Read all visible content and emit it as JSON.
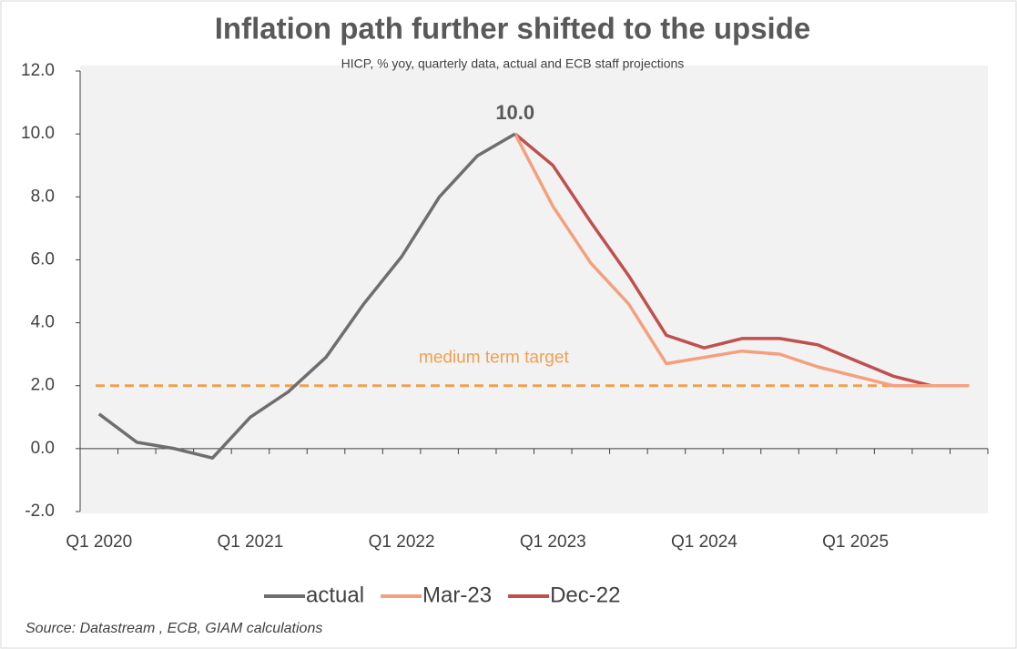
{
  "chart_data": {
    "type": "line",
    "title": "Inflation path further shifted to the upside",
    "subtitle": "HICP, % yoy, quarterly data, actual and ECB staff projections",
    "source": "Source: Datastream , ECB, GIAM calculations",
    "categories": [
      "Q1 2020",
      null,
      null,
      null,
      "Q1 2021",
      null,
      null,
      null,
      "Q1 2022",
      null,
      null,
      null,
      "Q1 2023",
      null,
      null,
      null,
      "Q1 2024",
      null,
      null,
      null,
      "Q1 2025",
      null,
      null,
      null
    ],
    "series": [
      {
        "name": "actual",
        "color": "#6e6e6e",
        "values": [
          1.1,
          0.2,
          0.0,
          -0.3,
          1.0,
          1.8,
          2.9,
          4.6,
          6.1,
          8.0,
          9.3,
          10.0,
          null,
          null,
          null,
          null,
          null,
          null,
          null,
          null,
          null,
          null,
          null,
          null
        ],
        "value_labels": [
          null,
          null,
          null,
          null,
          null,
          null,
          null,
          null,
          null,
          null,
          null,
          "10.0",
          null,
          null,
          null,
          null,
          null,
          null,
          null,
          null,
          null,
          null,
          null,
          null
        ]
      },
      {
        "name": "Mar-23",
        "color": "#f4a07e",
        "values": [
          null,
          null,
          null,
          null,
          null,
          null,
          null,
          null,
          null,
          null,
          null,
          10.0,
          7.7,
          5.9,
          4.6,
          2.7,
          2.9,
          3.1,
          3.0,
          2.6,
          2.3,
          2.0,
          2.0,
          2.0
        ]
      },
      {
        "name": "Dec-22",
        "color": "#c0504d",
        "values": [
          null,
          null,
          null,
          null,
          null,
          null,
          null,
          null,
          null,
          null,
          null,
          10.0,
          9.0,
          7.2,
          5.5,
          3.6,
          3.2,
          3.5,
          3.5,
          3.3,
          2.8,
          2.3,
          2.0,
          2.0
        ]
      }
    ],
    "reference_line": {
      "value": 2,
      "label": "medium term target",
      "color": "#f0a050"
    },
    "ylim": [
      -2,
      12
    ],
    "yticks": [
      {
        "value": -2,
        "label": "-2.0"
      },
      {
        "value": 0,
        "label": "0.0"
      },
      {
        "value": 2,
        "label": "2.0"
      },
      {
        "value": 4,
        "label": "4.0"
      },
      {
        "value": 6,
        "label": "6.0"
      },
      {
        "value": 8,
        "label": "8.0"
      },
      {
        "value": 10,
        "label": "10.0"
      },
      {
        "value": 12,
        "label": "12.0"
      }
    ]
  }
}
